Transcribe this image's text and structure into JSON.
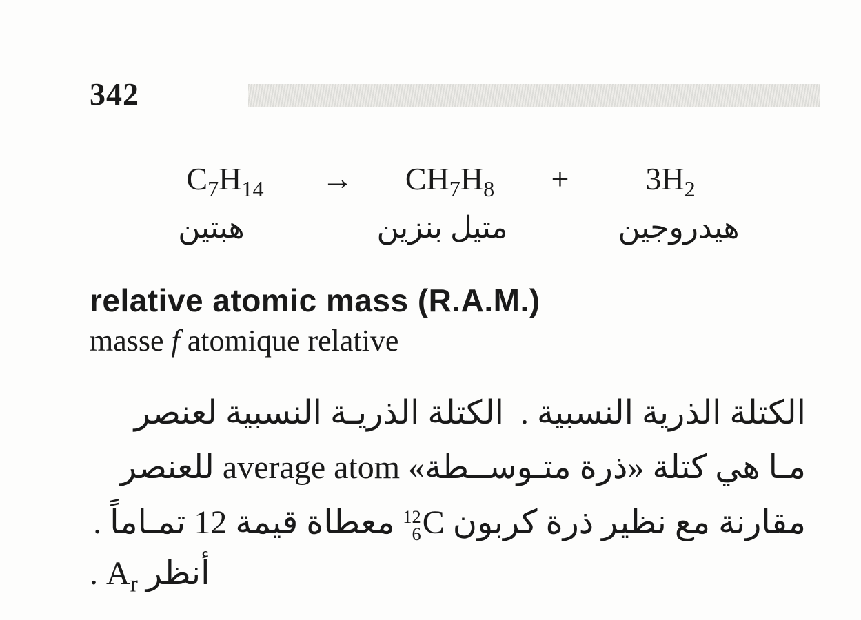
{
  "page_number": "342",
  "equation": {
    "reactant": {
      "formula_html": "C<sub>7</sub>H<sub>14</sub>",
      "label_ar": "هبتين"
    },
    "arrow": "→",
    "product1": {
      "formula_html": "CH<sub>7</sub>H<sub>8</sub>",
      "label_ar": "متيل بنزين"
    },
    "plus": "+",
    "product2": {
      "formula_html": "3H<sub>2</sub>",
      "label_ar": "هيدروجين"
    }
  },
  "entry": {
    "english": "relative atomic mass (R.A.M.)",
    "french_parts": {
      "p1": "masse ",
      "italic": "f",
      "p2": " atomique relative"
    },
    "arabic_heading": "الكتلة الذرية النسبية .",
    "arabic_body_1": "الكتلة الذريـة النسبية لعنصر",
    "arabic_line2_pre": "مـا هي كتلة «ذرة متـوســطة» ",
    "inline_en": "average atom",
    "arabic_line2_post": " للعنصر",
    "arabic_line3_pre": "مقارنة مع نظير ذرة كربون ",
    "isotope": {
      "mass": "12",
      "atomic": "6",
      "element": "C"
    },
    "arabic_line3_post": " معطاة قيمة 12 تمـاماً .",
    "arabic_see": "أنظر ",
    "see_symbol_html": "A<sub>r</sub>",
    "period": " ."
  },
  "colors": {
    "text": "#1a1a1a",
    "background": "#fdfdfc",
    "band": "#d7d7d3"
  }
}
